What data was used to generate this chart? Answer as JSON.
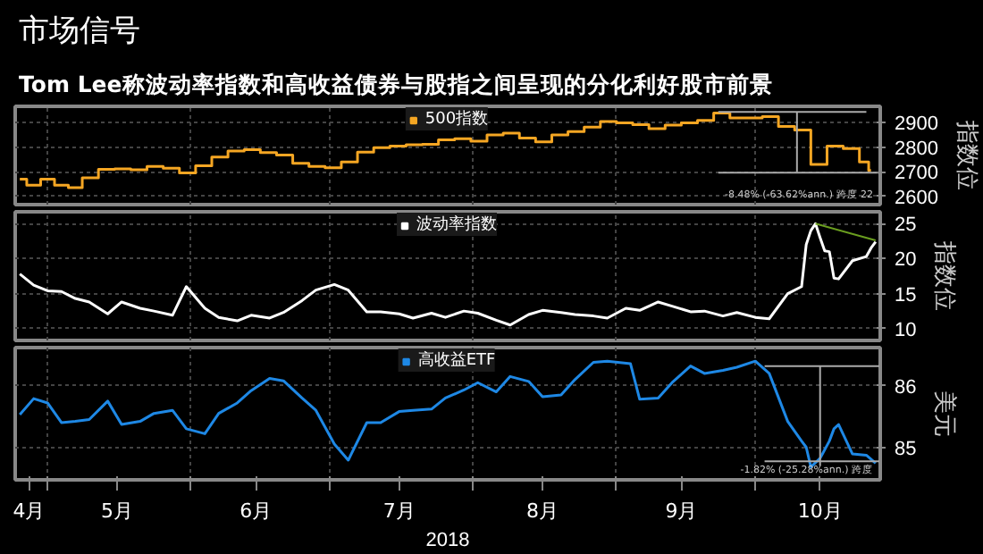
{
  "chart_data": [
    {
      "type": "line",
      "title": "市场信号",
      "subtitle": "Tom Lee称波动率指数和高收益债券与股指之间呈现的分化利好股市前景",
      "ylabel": "指数位",
      "xlim": [
        "2018-04-24",
        "2018-10-28"
      ],
      "xticks": [
        {
          "value": "2018-05-01",
          "label": null
        },
        {
          "value": "2018-06-01",
          "label": null
        },
        {
          "value": "2018-07-01",
          "label": null
        },
        {
          "value": "2018-08-01",
          "label": null
        },
        {
          "value": "2018-09-01",
          "label": null
        },
        {
          "value": "2018-10-01",
          "label": null
        }
      ],
      "ylim": [
        2566,
        2967
      ],
      "yticks": [
        2600,
        2700,
        2800,
        2900
      ],
      "grid": true,
      "legend": "top",
      "tick_labels": "y",
      "series": [
        {
          "name": "500指数",
          "type": "step",
          "color": "#f5a623",
          "x": [
            "2018-04-25",
            "2018-04-28",
            "2018-05-01",
            "2018-05-04",
            "2018-05-07",
            "2018-05-10",
            "2018-05-14",
            "2018-05-17",
            "2018-05-21",
            "2018-05-24",
            "2018-05-28",
            "2018-05-31",
            "2018-06-04",
            "2018-06-07",
            "2018-06-11",
            "2018-06-14",
            "2018-06-18",
            "2018-06-21",
            "2018-06-25",
            "2018-06-28",
            "2018-07-02",
            "2018-07-05",
            "2018-07-09",
            "2018-07-12",
            "2018-07-16",
            "2018-07-19",
            "2018-07-23",
            "2018-07-26",
            "2018-07-30",
            "2018-08-02",
            "2018-08-06",
            "2018-08-09",
            "2018-08-13",
            "2018-08-16",
            "2018-08-20",
            "2018-08-23",
            "2018-08-27",
            "2018-08-30",
            "2018-09-03",
            "2018-09-06",
            "2018-09-10",
            "2018-09-13",
            "2018-09-17",
            "2018-09-20",
            "2018-09-24",
            "2018-09-27",
            "2018-10-01",
            "2018-10-04",
            "2018-10-08",
            "2018-10-11",
            "2018-10-15",
            "2018-10-18",
            "2018-10-22",
            "2018-10-25",
            "2018-10-26"
          ],
          "values": [
            2670,
            2645,
            2670,
            2645,
            2635,
            2675,
            2710,
            2712,
            2708,
            2722,
            2715,
            2695,
            2725,
            2760,
            2785,
            2790,
            2778,
            2768,
            2735,
            2722,
            2716,
            2740,
            2780,
            2798,
            2805,
            2810,
            2812,
            2830,
            2835,
            2825,
            2850,
            2858,
            2838,
            2822,
            2850,
            2864,
            2882,
            2905,
            2900,
            2892,
            2876,
            2890,
            2900,
            2910,
            2940,
            2920,
            2920,
            2925,
            2885,
            2870,
            2730,
            2805,
            2795,
            2740,
            2705
          ]
        },
        {
          "type": "line",
          "color": "#aaaaaa",
          "x": [
            "2018-09-23",
            "2018-10-25"
          ],
          "values": [
            2944,
            2944
          ]
        },
        {
          "type": "line",
          "color": "#aaaaaa",
          "x": [
            "2018-10-10",
            "2018-10-10"
          ],
          "values": [
            2944,
            2700
          ]
        },
        {
          "type": "line",
          "color": "#aaaaaa",
          "x": [
            "2018-09-23",
            "2018-10-28"
          ],
          "values": [
            2696,
            2696
          ]
        }
      ],
      "annotations": [
        "-8.48% (-63.62%ann.) 跨度 22"
      ]
    },
    {
      "type": "line",
      "ylabel": "指数位",
      "xlim": [
        "2018-04-24",
        "2018-10-28"
      ],
      "xticks": [
        {
          "value": "2018-05-01",
          "label": null
        },
        {
          "value": "2018-06-01",
          "label": null
        },
        {
          "value": "2018-07-01",
          "label": null
        },
        {
          "value": "2018-08-01",
          "label": null
        },
        {
          "value": "2018-09-01",
          "label": null
        },
        {
          "value": "2018-10-01",
          "label": null
        }
      ],
      "ylim": [
        8.3,
        26.7
      ],
      "yticks": [
        10,
        15,
        20,
        25
      ],
      "grid": true,
      "legend": "top",
      "tick_labels": "y",
      "series": [
        {
          "name": "波动率指数",
          "color": "#ffffff",
          "x": [
            "2018-04-25",
            "2018-04-28",
            "2018-05-01",
            "2018-05-04",
            "2018-05-07",
            "2018-05-10",
            "2018-05-14",
            "2018-05-17",
            "2018-05-21",
            "2018-05-24",
            "2018-05-28",
            "2018-05-31",
            "2018-06-04",
            "2018-06-07",
            "2018-06-11",
            "2018-06-14",
            "2018-06-18",
            "2018-06-21",
            "2018-06-25",
            "2018-06-28",
            "2018-07-02",
            "2018-07-05",
            "2018-07-09",
            "2018-07-12",
            "2018-07-16",
            "2018-07-19",
            "2018-07-23",
            "2018-07-26",
            "2018-07-30",
            "2018-08-02",
            "2018-08-06",
            "2018-08-09",
            "2018-08-13",
            "2018-08-16",
            "2018-08-20",
            "2018-08-23",
            "2018-08-27",
            "2018-08-30",
            "2018-09-03",
            "2018-09-06",
            "2018-09-10",
            "2018-09-13",
            "2018-09-17",
            "2018-09-20",
            "2018-09-24",
            "2018-09-27",
            "2018-10-01",
            "2018-10-04",
            "2018-10-08",
            "2018-10-11",
            "2018-10-12",
            "2018-10-13",
            "2018-10-14",
            "2018-10-15",
            "2018-10-16",
            "2018-10-17",
            "2018-10-18",
            "2018-10-19",
            "2018-10-22",
            "2018-10-25",
            "2018-10-26",
            "2018-10-27"
          ],
          "values": [
            17.8,
            16.2,
            15.4,
            15.3,
            14.3,
            13.8,
            12.1,
            13.8,
            12.9,
            12.5,
            11.9,
            16.0,
            12.9,
            11.6,
            11.1,
            11.9,
            11.5,
            12.3,
            14.0,
            15.5,
            16.3,
            15.5,
            12.4,
            12.4,
            12.1,
            11.5,
            12.2,
            11.6,
            12.5,
            12.2,
            11.2,
            10.5,
            12.0,
            12.6,
            12.3,
            12.0,
            11.8,
            11.5,
            12.9,
            12.6,
            13.8,
            13.2,
            12.4,
            12.5,
            11.8,
            12.3,
            11.6,
            11.4,
            15.0,
            16.0,
            22.0,
            24.0,
            25.0,
            23.0,
            21.1,
            21.0,
            17.2,
            17.1,
            19.7,
            20.3,
            21.5,
            22.4
          ]
        },
        {
          "type": "line",
          "color": "#6a9e1f",
          "x": [
            "2018-10-14",
            "2018-10-27"
          ],
          "values": [
            25.0,
            22.6
          ]
        }
      ]
    },
    {
      "type": "line",
      "ylabel": "美元",
      "xlabel": "2018",
      "xlim": [
        "2018-04-24",
        "2018-10-28"
      ],
      "xticks": [
        {
          "value": "2018-04-27",
          "label": "4月"
        },
        {
          "value": "2018-05-01",
          "label": null
        },
        {
          "value": "2018-05-16",
          "label": "5月"
        },
        {
          "value": "2018-06-01",
          "label": null
        },
        {
          "value": "2018-06-15",
          "label": "6月"
        },
        {
          "value": "2018-07-01",
          "label": null
        },
        {
          "value": "2018-07-16",
          "label": "7月"
        },
        {
          "value": "2018-08-01",
          "label": null
        },
        {
          "value": "2018-08-16",
          "label": "8月"
        },
        {
          "value": "2018-09-01",
          "label": null
        },
        {
          "value": "2018-09-15",
          "label": "9月"
        },
        {
          "value": "2018-10-01",
          "label": null
        },
        {
          "value": "2018-10-15",
          "label": "10月"
        }
      ],
      "ylim": [
        84.47,
        86.62
      ],
      "yticks": [
        85,
        86
      ],
      "grid": true,
      "legend": "top",
      "series": [
        {
          "name": "高收益ETF",
          "color": "#1e88e5",
          "x": [
            "2018-04-25",
            "2018-04-28",
            "2018-05-01",
            "2018-05-04",
            "2018-05-07",
            "2018-05-10",
            "2018-05-14",
            "2018-05-17",
            "2018-05-21",
            "2018-05-24",
            "2018-05-28",
            "2018-05-31",
            "2018-06-04",
            "2018-06-07",
            "2018-06-11",
            "2018-06-14",
            "2018-06-18",
            "2018-06-21",
            "2018-06-25",
            "2018-06-28",
            "2018-07-02",
            "2018-07-05",
            "2018-07-09",
            "2018-07-12",
            "2018-07-16",
            "2018-07-19",
            "2018-07-23",
            "2018-07-26",
            "2018-07-30",
            "2018-08-02",
            "2018-08-06",
            "2018-08-09",
            "2018-08-13",
            "2018-08-16",
            "2018-08-20",
            "2018-08-23",
            "2018-08-27",
            "2018-08-30",
            "2018-09-04",
            "2018-09-06",
            "2018-09-10",
            "2018-09-13",
            "2018-09-17",
            "2018-09-20",
            "2018-09-24",
            "2018-09-27",
            "2018-10-01",
            "2018-10-04",
            "2018-10-08",
            "2018-10-11",
            "2018-10-12",
            "2018-10-13",
            "2018-10-15",
            "2018-10-17",
            "2018-10-18",
            "2018-10-19",
            "2018-10-22",
            "2018-10-25",
            "2018-10-27"
          ],
          "values": [
            85.53,
            85.79,
            85.72,
            85.4,
            85.42,
            85.45,
            85.75,
            85.37,
            85.42,
            85.55,
            85.6,
            85.3,
            85.22,
            85.55,
            85.72,
            85.92,
            86.12,
            86.08,
            85.8,
            85.6,
            85.05,
            84.79,
            85.4,
            85.4,
            85.58,
            85.6,
            85.62,
            85.8,
            85.93,
            86.05,
            85.9,
            86.15,
            86.07,
            85.82,
            85.85,
            86.1,
            86.38,
            86.4,
            86.36,
            85.78,
            85.8,
            86.05,
            86.32,
            86.2,
            86.25,
            86.3,
            86.4,
            86.2,
            85.42,
            85.1,
            85.0,
            84.68,
            84.82,
            85.1,
            85.3,
            85.37,
            84.89,
            84.87,
            84.74
          ]
        },
        {
          "type": "line",
          "color": "#aaaaaa",
          "x": [
            "2018-10-03",
            "2018-10-28"
          ],
          "values": [
            86.32,
            86.32
          ]
        },
        {
          "type": "line",
          "color": "#aaaaaa",
          "x": [
            "2018-10-15",
            "2018-10-15"
          ],
          "values": [
            86.32,
            84.7
          ]
        },
        {
          "type": "line",
          "color": "#aaaaaa",
          "x": [
            "2018-10-03",
            "2018-10-28"
          ],
          "values": [
            84.77,
            84.77
          ]
        }
      ],
      "annotations": [
        "-1.82% (-25.28%ann.) 跨度"
      ]
    }
  ]
}
